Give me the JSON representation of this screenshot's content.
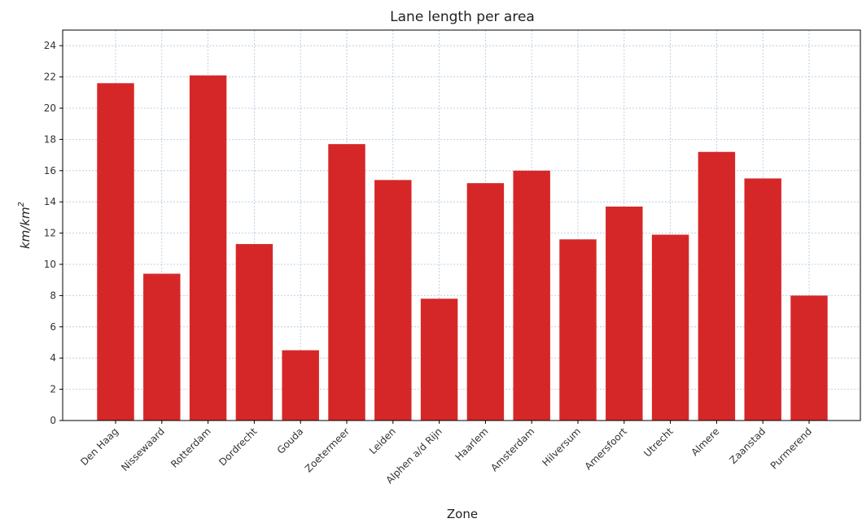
{
  "chart_data": {
    "type": "bar",
    "title": "Lane length per area",
    "xlabel": "Zone",
    "ylabel": "km/km²",
    "ylabel_base": "km/km",
    "ylabel_sup": "2",
    "categories": [
      "Den Haag",
      "Nissewaard",
      "Rotterdam",
      "Dordrecht",
      "Gouda",
      "Zoetermeer",
      "Leiden",
      "Alphen a/d Rijn",
      "Haarlem",
      "Amsterdam",
      "Hilversum",
      "Amersfoort",
      "Utrecht",
      "Almere",
      "Zaanstad",
      "Purmerend"
    ],
    "values": [
      21.6,
      9.4,
      22.1,
      11.3,
      4.5,
      17.7,
      15.4,
      7.8,
      15.2,
      16.0,
      11.6,
      13.7,
      11.9,
      17.2,
      15.5,
      8.0
    ],
    "ylim": [
      0,
      25
    ],
    "yticks": [
      0,
      2,
      4,
      6,
      8,
      10,
      12,
      14,
      16,
      18,
      20,
      22,
      24
    ],
    "grid": true,
    "legend": "none",
    "bar_color": "#d62728",
    "grid_color": "#b0c4de"
  }
}
